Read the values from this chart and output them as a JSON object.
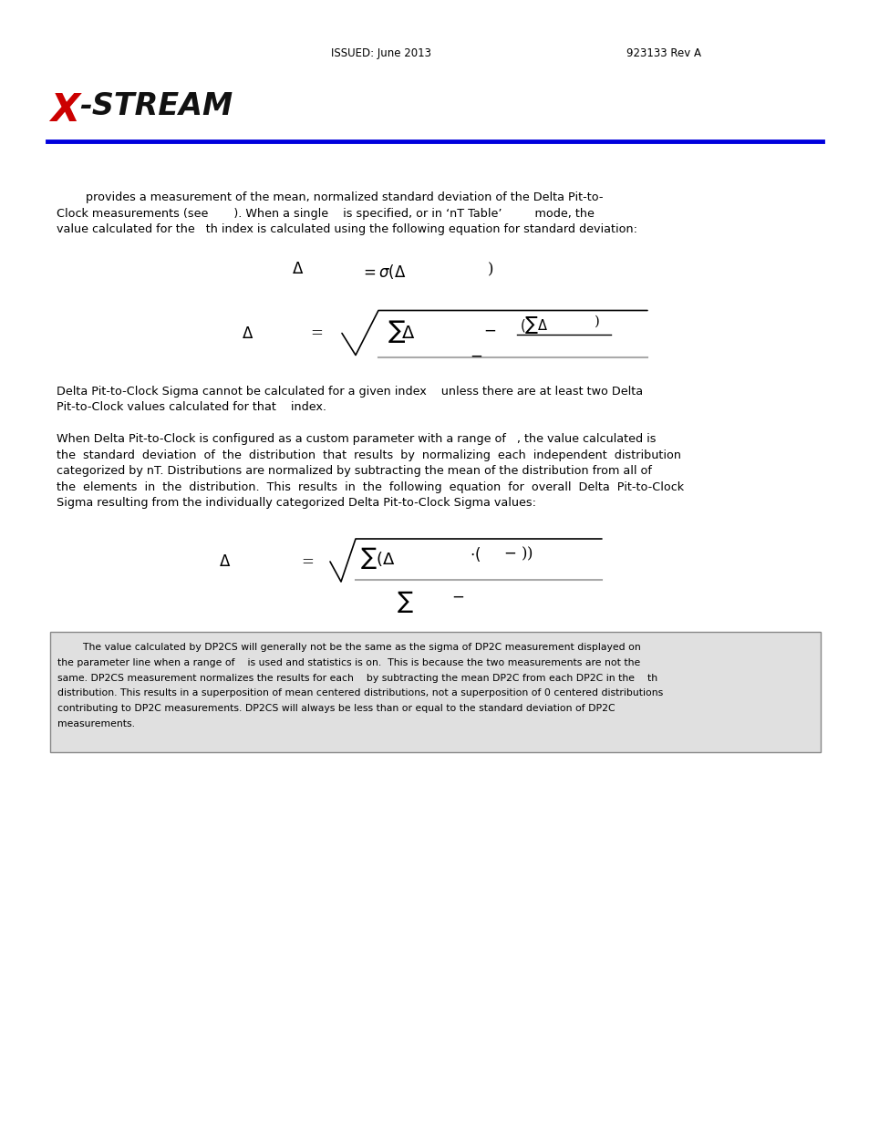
{
  "bg_color": "#ffffff",
  "page_width": 9.54,
  "page_height": 12.35,
  "footer_text": "ISSUED: June 2013",
  "footer_text2": "923133 Rev A",
  "p1_lines": [
    "        provides a measurement of the mean, normalized standard deviation of the Delta Pit-to-",
    "Clock measurements (see       ). When a single    is specified, or in ‘nT Table’         mode, the",
    "value calculated for the   th index is calculated using the following equation for standard deviation:"
  ],
  "p2_lines": [
    "Delta Pit-to-Clock Sigma cannot be calculated for a given index    unless there are at least two Delta",
    "Pit-to-Clock values calculated for that    index."
  ],
  "p3_lines": [
    "When Delta Pit-to-Clock is configured as a custom parameter with a range of   , the value calculated is",
    "the  standard  deviation  of  the  distribution  that  results  by  normalizing  each  independent  distribution",
    "categorized by nT. Distributions are normalized by subtracting the mean of the distribution from all of",
    "the  elements  in  the  distribution.  This  results  in  the  following  equation  for  overall  Delta  Pit-to-Clock",
    "Sigma resulting from the individually categorized Delta Pit-to-Clock Sigma values:"
  ],
  "note_lines": [
    "        The value calculated by DP2CS will generally not be the same as the sigma of DP2C measurement displayed on",
    "the parameter line when a range of    is used and statistics is on.  This is because the two measurements are not the",
    "same. DP2CS measurement normalizes the results for each    by subtracting the mean DP2C from each DP2C in the    th",
    "distribution. This results in a superposition of mean centered distributions, not a superposition of 0 centered distributions",
    "contributing to DP2C measurements. DP2CS will always be less than or equal to the standard deviation of DP2C",
    "measurements."
  ]
}
